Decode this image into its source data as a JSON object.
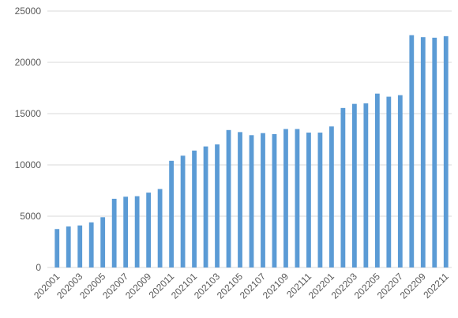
{
  "chart_data": {
    "type": "bar",
    "categories": [
      "202001",
      null,
      "202003",
      null,
      "202005",
      null,
      "202007",
      null,
      "202009",
      null,
      "202011",
      null,
      "202101",
      null,
      "202103",
      null,
      "202105",
      null,
      "202107",
      null,
      "202109",
      null,
      "202111",
      null,
      "202201",
      null,
      "202203",
      null,
      "202205",
      null,
      "202207",
      null,
      "202209",
      null,
      "202211"
    ],
    "values": [
      3750,
      4000,
      4100,
      4400,
      4900,
      6700,
      6900,
      6950,
      7300,
      7650,
      10400,
      10900,
      11400,
      11800,
      12000,
      13400,
      13200,
      12900,
      13100,
      13000,
      13500,
      13500,
      13150,
      13150,
      13750,
      15550,
      15950,
      16000,
      16950,
      16650,
      16800,
      22650,
      22450,
      22400,
      22550
    ],
    "color": "#5b9bd5",
    "ylim": [
      0,
      25000
    ],
    "yticks": [
      0,
      5000,
      10000,
      15000,
      20000,
      25000
    ],
    "grid": true
  }
}
